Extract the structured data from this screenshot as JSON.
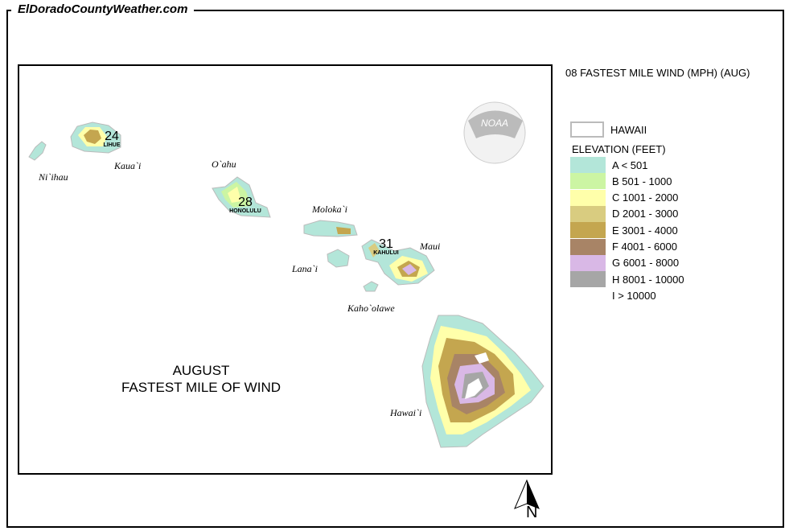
{
  "site": "ElDoradoCountyWeather.com",
  "map_title": "08 FASTEST MILE WIND (MPH) (AUG)",
  "heading": {
    "line1": "AUGUST",
    "line2": "FASTEST MILE OF WIND"
  },
  "legend": {
    "state": "HAWAII",
    "elevation_title": "ELEVATION (FEET)",
    "items": [
      {
        "label": "A < 501",
        "color": "#b3e6d9"
      },
      {
        "label": "B 501 - 1000",
        "color": "#ccf5a3"
      },
      {
        "label": "C 1001 - 2000",
        "color": "#ffffaa"
      },
      {
        "label": "D 2001 - 3000",
        "color": "#d9cc80"
      },
      {
        "label": "E 3001 - 4000",
        "color": "#c4a64f"
      },
      {
        "label": "F 4001 - 6000",
        "color": "#a88466"
      },
      {
        "label": "G 6001 - 8000",
        "color": "#d9b8e6"
      },
      {
        "label": "H 8001 - 10000",
        "color": "#a6a6a6"
      },
      {
        "label": "I > 10000",
        "color": "#ffffff"
      }
    ]
  },
  "islands": [
    "Ni`ihau",
    "Kaua`i",
    "O`ahu",
    "Moloka`i",
    "Lana`i",
    "Maui",
    "Kaho`olawe",
    "Hawai`i"
  ],
  "stations": [
    {
      "city": "LIHUE",
      "value": "24"
    },
    {
      "city": "HONOLULU",
      "value": "28"
    },
    {
      "city": "KAHULUI",
      "value": "31"
    }
  ],
  "logo": "NOAA",
  "north": "N"
}
